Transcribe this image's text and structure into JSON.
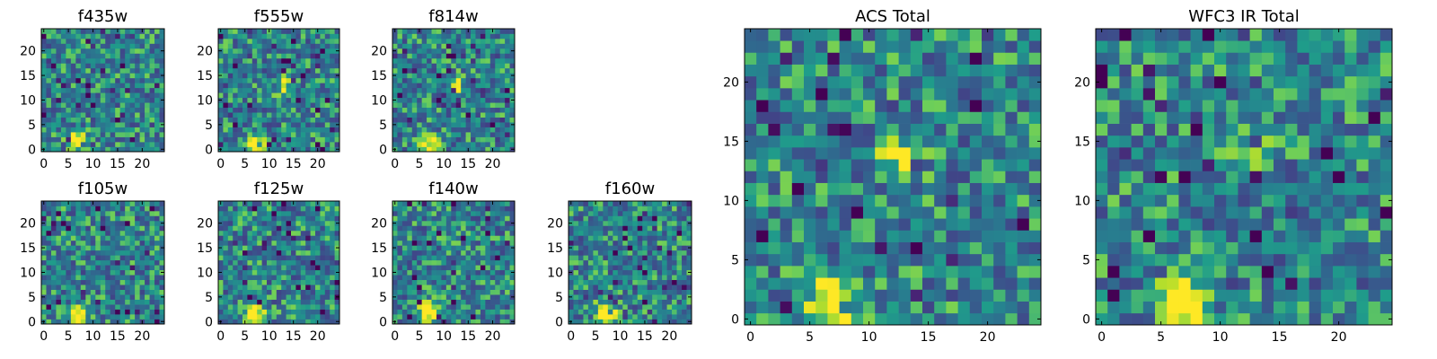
{
  "colors": {
    "colormap": "viridis",
    "frame": "#000000"
  },
  "chart_data": [
    {
      "type": "heatmap",
      "title": "f435w",
      "cols": 25,
      "rows": 25,
      "xlim": [
        0,
        24
      ],
      "ylim": [
        0,
        24
      ],
      "xticks": [
        0,
        5,
        10,
        15,
        20
      ],
      "yticks": [
        0,
        5,
        10,
        15,
        20
      ],
      "grid": false,
      "features": [
        {
          "x": 7,
          "y": 2,
          "intensity": "high"
        }
      ]
    },
    {
      "type": "heatmap",
      "title": "f555w",
      "cols": 25,
      "rows": 25,
      "xlim": [
        0,
        24
      ],
      "ylim": [
        0,
        24
      ],
      "xticks": [
        0,
        5,
        10,
        15,
        20
      ],
      "yticks": [
        0,
        5,
        10,
        15,
        20
      ],
      "grid": false,
      "features": [
        {
          "x": 7,
          "y": 1,
          "intensity": "high"
        },
        {
          "x": 13,
          "y": 13,
          "intensity": "medium"
        }
      ]
    },
    {
      "type": "heatmap",
      "title": "f814w",
      "cols": 25,
      "rows": 25,
      "xlim": [
        0,
        24
      ],
      "ylim": [
        0,
        24
      ],
      "xticks": [
        0,
        5,
        10,
        15,
        20
      ],
      "yticks": [
        0,
        5,
        10,
        15,
        20
      ],
      "grid": false,
      "features": [
        {
          "x": 7,
          "y": 1,
          "intensity": "high"
        },
        {
          "x": 13,
          "y": 13,
          "intensity": "medium"
        }
      ]
    },
    {
      "type": "heatmap",
      "title": "f105w",
      "cols": 25,
      "rows": 25,
      "xlim": [
        0,
        24
      ],
      "ylim": [
        0,
        24
      ],
      "xticks": [
        0,
        5,
        10,
        15,
        20
      ],
      "yticks": [
        0,
        5,
        10,
        15,
        20
      ],
      "grid": false,
      "features": [
        {
          "x": 7,
          "y": 1,
          "intensity": "high"
        }
      ]
    },
    {
      "type": "heatmap",
      "title": "f125w",
      "cols": 25,
      "rows": 25,
      "xlim": [
        0,
        24
      ],
      "ylim": [
        0,
        24
      ],
      "xticks": [
        0,
        5,
        10,
        15,
        20
      ],
      "yticks": [
        0,
        5,
        10,
        15,
        20
      ],
      "grid": false,
      "features": [
        {
          "x": 7,
          "y": 1,
          "intensity": "high"
        }
      ]
    },
    {
      "type": "heatmap",
      "title": "f140w",
      "cols": 25,
      "rows": 25,
      "xlim": [
        0,
        24
      ],
      "ylim": [
        0,
        24
      ],
      "xticks": [
        0,
        5,
        10,
        15,
        20
      ],
      "yticks": [
        0,
        5,
        10,
        15,
        20
      ],
      "grid": false,
      "features": [
        {
          "x": 7,
          "y": 2,
          "intensity": "high"
        }
      ]
    },
    {
      "type": "heatmap",
      "title": "f160w",
      "cols": 25,
      "rows": 25,
      "xlim": [
        0,
        24
      ],
      "ylim": [
        0,
        24
      ],
      "xticks": [
        0,
        5,
        10,
        15,
        20
      ],
      "yticks": [
        0,
        5,
        10,
        15,
        20
      ],
      "grid": false,
      "features": [
        {
          "x": 7,
          "y": 2,
          "intensity": "high"
        }
      ]
    },
    {
      "type": "heatmap",
      "title": "ACS Total",
      "cols": 25,
      "rows": 25,
      "xlim": [
        0,
        24
      ],
      "ylim": [
        0,
        24
      ],
      "xticks": [
        0,
        5,
        10,
        15,
        20
      ],
      "yticks": [
        0,
        5,
        10,
        15,
        20
      ],
      "grid": false,
      "features": [
        {
          "x": 7,
          "y": 1.5,
          "intensity": "high"
        },
        {
          "x": 12.5,
          "y": 13.5,
          "intensity": "medium"
        }
      ]
    },
    {
      "type": "heatmap",
      "title": "WFC3 IR Total",
      "cols": 25,
      "rows": 25,
      "xlim": [
        0,
        24
      ],
      "ylim": [
        0,
        24
      ],
      "xticks": [
        0,
        5,
        10,
        15,
        20
      ],
      "yticks": [
        0,
        5,
        10,
        15,
        20
      ],
      "grid": false,
      "features": [
        {
          "x": 7,
          "y": 1.5,
          "intensity": "high"
        },
        {
          "x": 12.5,
          "y": 13.5,
          "intensity": "medium"
        }
      ]
    }
  ]
}
